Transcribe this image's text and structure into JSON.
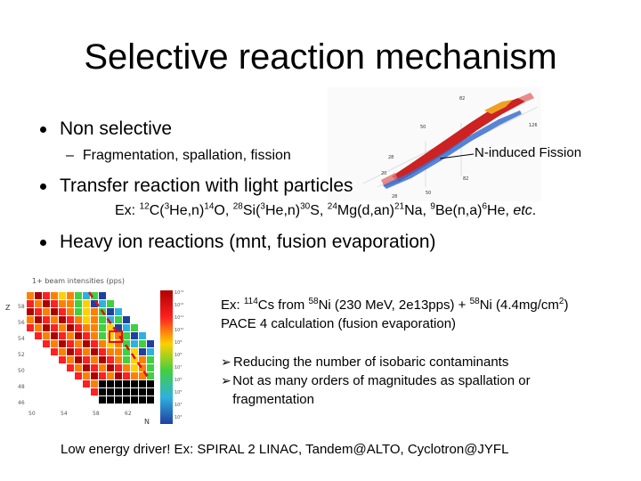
{
  "slide": {
    "title": "Selective reaction mechanism",
    "bullet1": "Non selective",
    "bullet1_sub": "Fragmentation, spallation, fission",
    "fission_label": "N-induced Fission",
    "bullet2": "Transfer reaction with light particles",
    "bullet3": "Heavy ion reactions (mnt, fusion evaporation)",
    "footer": "Low energy driver! Ex: SPIRAL 2 LINAC, Tandem@ALTO, Cyclotron@JYFL"
  },
  "example2": {
    "prefix": "Ex: ",
    "r1a": "12",
    "r1b": "C(",
    "r1c": "3",
    "r1d": "He,n)",
    "r1e": "14",
    "r1f": "O, ",
    "r2a": "28",
    "r2b": "Si(",
    "r2c": "3",
    "r2d": "He,n)",
    "r2e": "30",
    "r2f": "S, ",
    "r3a": "24",
    "r3b": "Mg(d,an)",
    "r3c": "21",
    "r3d": "Na, ",
    "r4a": "9",
    "r4b": "Be(n,a)",
    "r4c": "6",
    "r4d": "He, ",
    "etc": "etc",
    "end": "."
  },
  "example3": {
    "l1a": "Ex: ",
    "l1b": "114",
    "l1c": "Cs from ",
    "l1d": "58",
    "l1e": "Ni (230 MeV, 2e13pps) + ",
    "l1f": "58",
    "l1g": "Ni (4.4mg/cm",
    "l1h": "2",
    "l1i": ")",
    "l2": "PACE 4 calculation (fusion evaporation)"
  },
  "arrows": {
    "a1": "Reducing the number of isobaric contaminants",
    "a2": "Not as many orders of magnitudes as spallation or fragmentation"
  },
  "beam_chart": {
    "title": "1+ beam intensities (pps)",
    "xaxis": "N",
    "yaxis": "Z",
    "xticks": [
      "50",
      "54",
      "58",
      "62"
    ],
    "yticks": [
      "58",
      "56",
      "54",
      "52",
      "50",
      "48",
      "46"
    ],
    "cbar_ticks": [
      "10¹³",
      "10¹²",
      "10¹¹",
      "10¹⁰",
      "10⁹",
      "10⁸",
      "10⁷",
      "10⁶",
      "10⁵",
      "10⁴",
      "10³"
    ]
  },
  "fission_plot": {
    "labels": [
      "82",
      "50",
      "28",
      "20",
      "126",
      "82",
      "50",
      "28"
    ]
  }
}
